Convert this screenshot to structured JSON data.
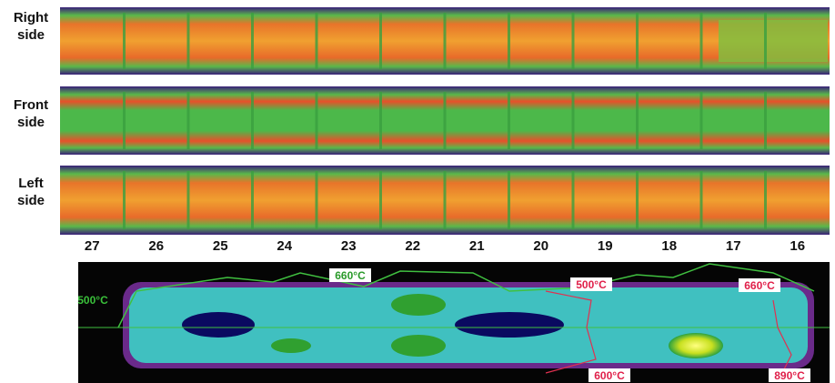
{
  "panels": [
    {
      "label": "Right side"
    },
    {
      "label": "Front side"
    },
    {
      "label": "Left side"
    }
  ],
  "segments": [
    27,
    26,
    25,
    24,
    23,
    22,
    21,
    20,
    19,
    18,
    17,
    16
  ],
  "temperature_labels": [
    "660°C",
    "500°C",
    "500°C",
    "600°C",
    "660°C",
    "890°C"
  ]
}
